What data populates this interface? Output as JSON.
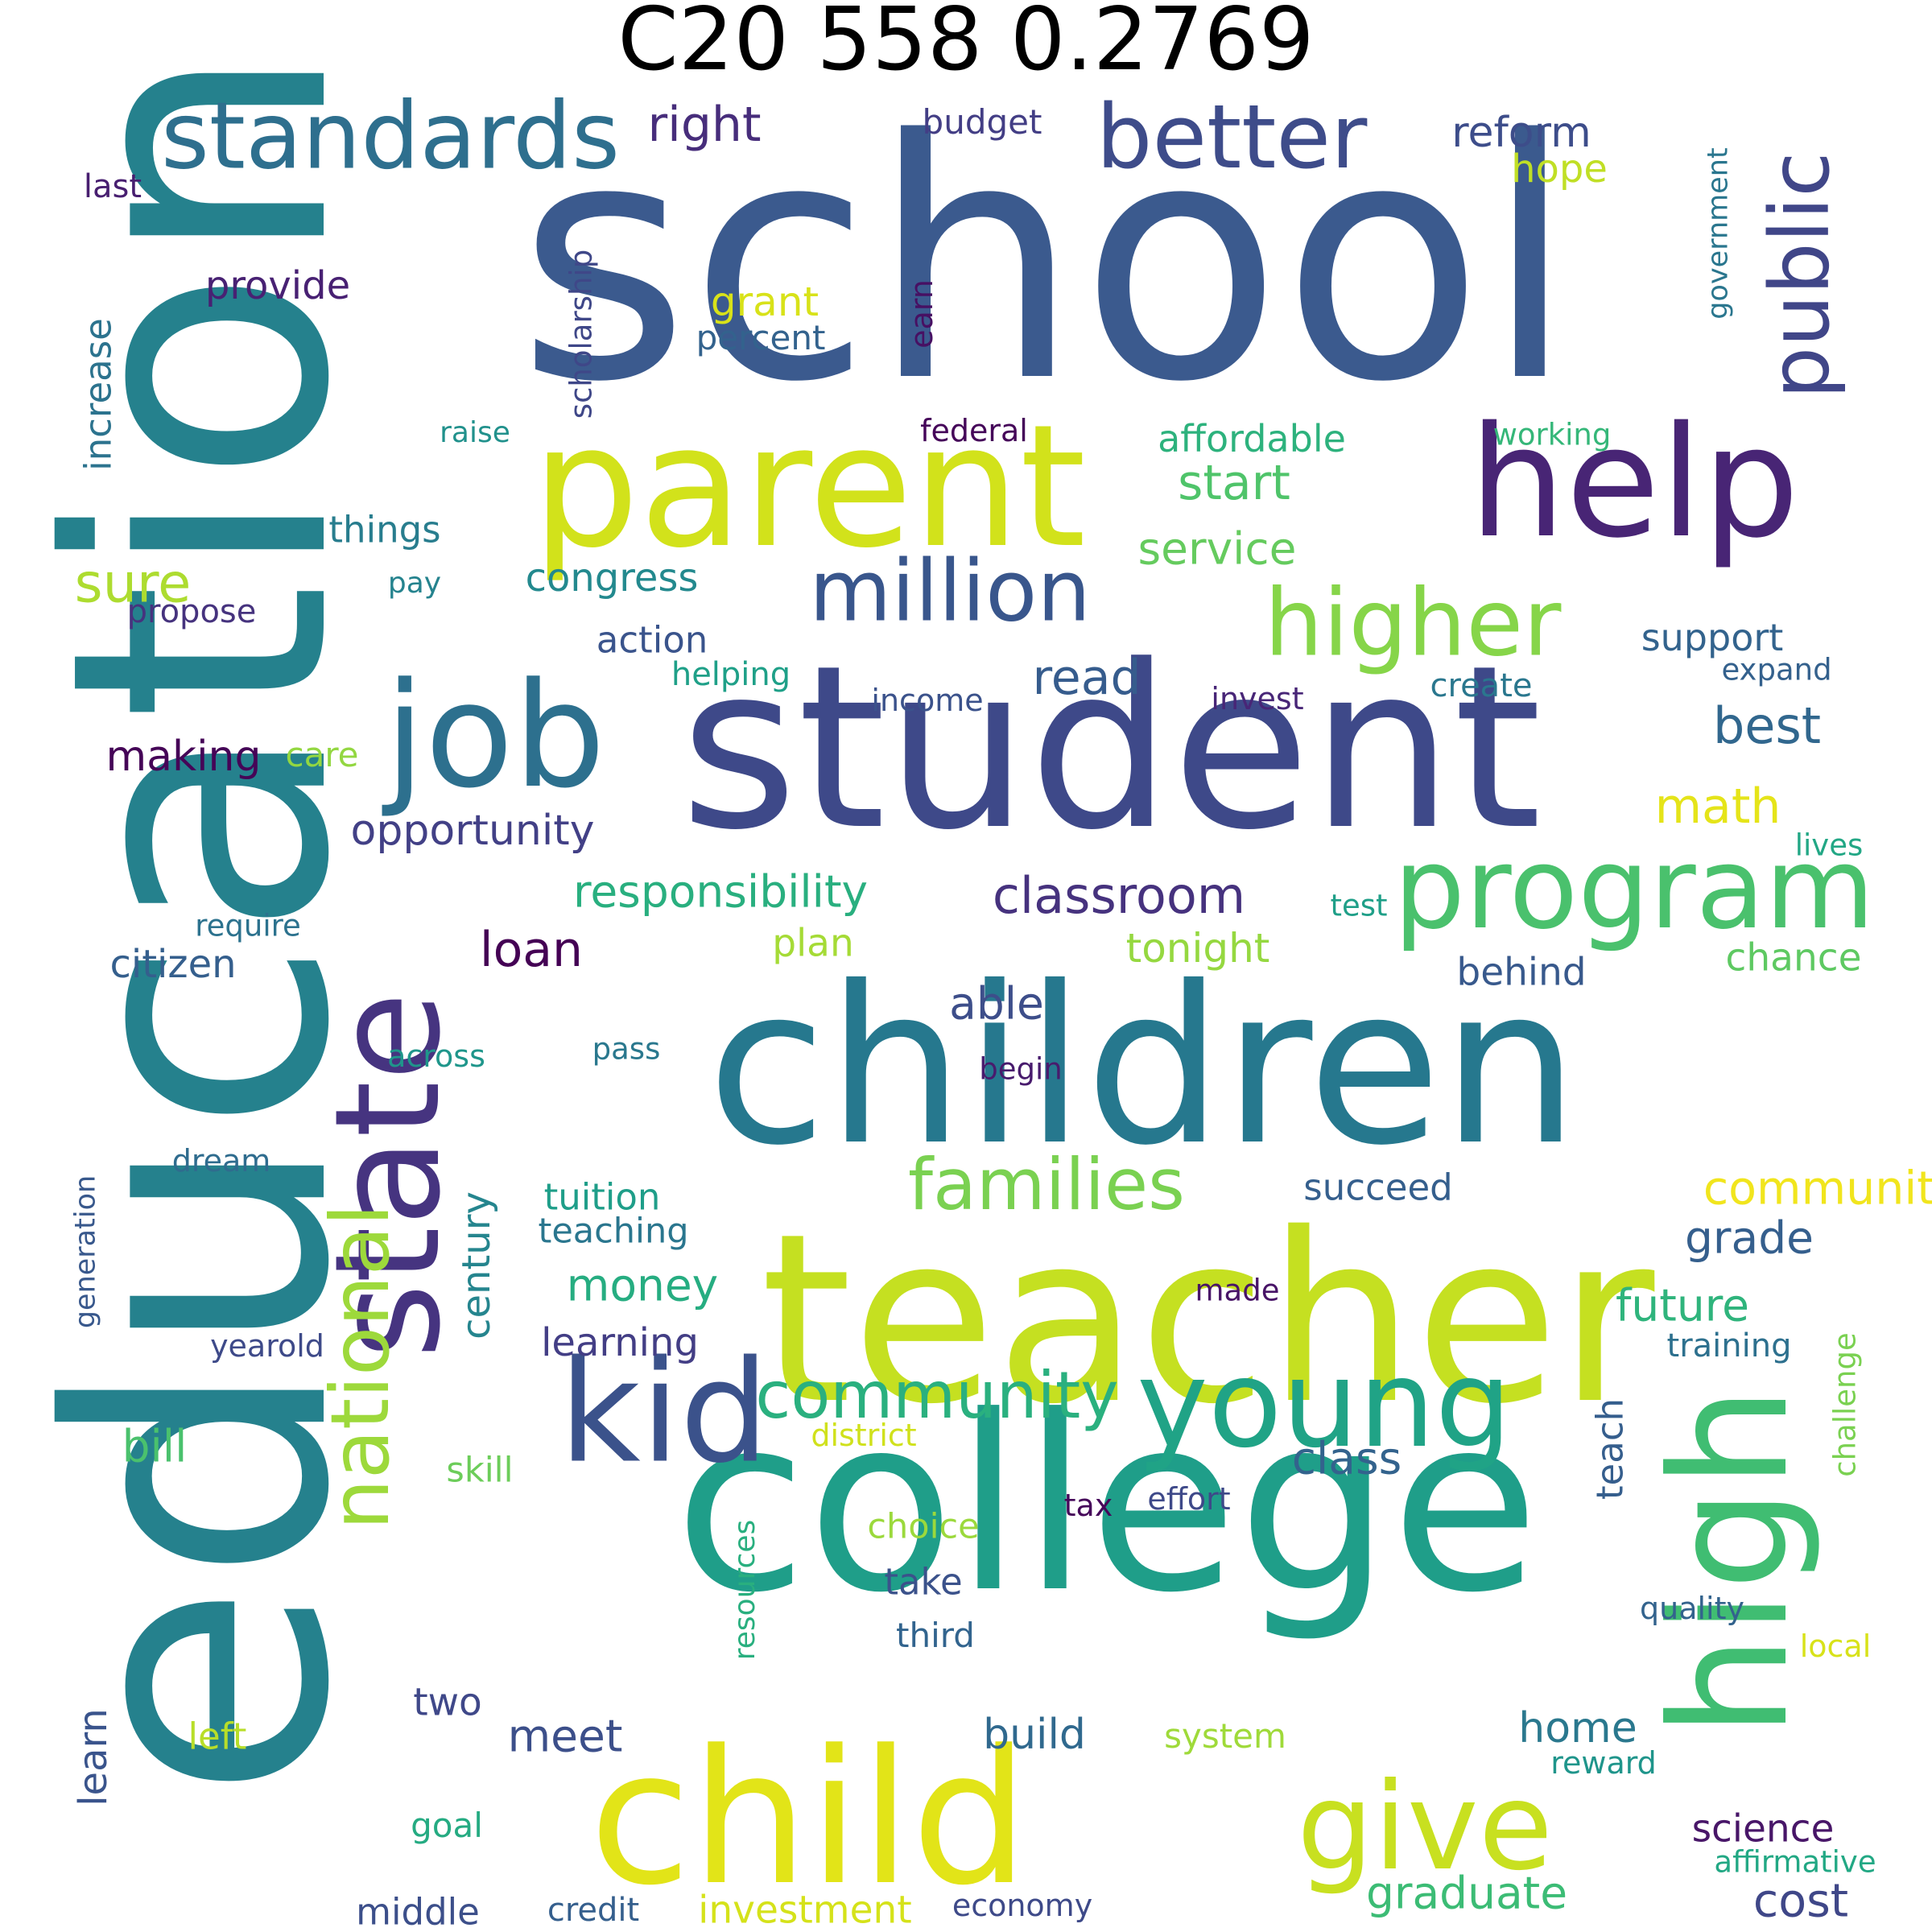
{
  "title": "C20 558 0.2769",
  "colors": {
    "background": "#ffffff",
    "title": "#000000",
    "palette": [
      "#440154",
      "#482878",
      "#3e4989",
      "#31688e",
      "#26828e",
      "#1f9e89",
      "#35b779",
      "#6ece58",
      "#b5de2b",
      "#fde725"
    ]
  },
  "words": [
    {
      "text": "school",
      "color": "#3b5a8e",
      "vertical": false
    },
    {
      "text": "education",
      "color": "#25818d",
      "vertical": true
    },
    {
      "text": "student",
      "color": "#3e4989",
      "vertical": false
    },
    {
      "text": "children",
      "color": "#26788e",
      "vertical": false
    },
    {
      "text": "college",
      "color": "#1f9e89",
      "vertical": false
    },
    {
      "text": "teacher",
      "color": "#c5e021",
      "vertical": false
    },
    {
      "text": "parent",
      "color": "#d2e21b",
      "vertical": false
    },
    {
      "text": "help",
      "color": "#482575",
      "vertical": false
    },
    {
      "text": "child",
      "color": "#e2e418",
      "vertical": false
    },
    {
      "text": "high",
      "color": "#40bd72",
      "vertical": true
    },
    {
      "text": "job",
      "color": "#2d708e",
      "vertical": false
    },
    {
      "text": "state",
      "color": "#463480",
      "vertical": true
    },
    {
      "text": "kid",
      "color": "#3b528b",
      "vertical": false
    },
    {
      "text": "young",
      "color": "#20a386",
      "vertical": false
    },
    {
      "text": "give",
      "color": "#c8e020",
      "vertical": false
    },
    {
      "text": "program",
      "color": "#4ac16d",
      "vertical": false
    },
    {
      "text": "standards",
      "color": "#2e6f8e",
      "vertical": false
    },
    {
      "text": "better",
      "color": "#3e4c8a",
      "vertical": false
    },
    {
      "text": "million",
      "color": "#39568c",
      "vertical": false
    },
    {
      "text": "higher",
      "color": "#86d549",
      "vertical": false
    },
    {
      "text": "public",
      "color": "#404688",
      "vertical": true
    },
    {
      "text": "national",
      "color": "#9dd93b",
      "vertical": true
    },
    {
      "text": "families",
      "color": "#7ad151",
      "vertical": false
    },
    {
      "text": "community",
      "color": "#2ab07f",
      "vertical": false
    },
    {
      "text": "right",
      "color": "#472d7b",
      "vertical": false
    },
    {
      "text": "reform",
      "color": "#3d4d8a",
      "vertical": false
    },
    {
      "text": "hope",
      "color": "#c0df25",
      "vertical": false
    },
    {
      "text": "government",
      "color": "#2a768e",
      "vertical": true
    },
    {
      "text": "budget",
      "color": "#433e85",
      "vertical": false
    },
    {
      "text": "last",
      "color": "#481f70",
      "vertical": false
    },
    {
      "text": "provide",
      "color": "#482173",
      "vertical": false
    },
    {
      "text": "scholarship",
      "color": "#3f4788",
      "vertical": true
    },
    {
      "text": "grant",
      "color": "#d8e219",
      "vertical": false
    },
    {
      "text": "earn",
      "color": "#471063",
      "vertical": true
    },
    {
      "text": "percent",
      "color": "#33628d",
      "vertical": false
    },
    {
      "text": "increase",
      "color": "#2c738e",
      "vertical": true
    },
    {
      "text": "raise",
      "color": "#21918c",
      "vertical": false
    },
    {
      "text": "federal",
      "color": "#450559",
      "vertical": false
    },
    {
      "text": "affordable",
      "color": "#2db27d",
      "vertical": false
    },
    {
      "text": "working",
      "color": "#35b779",
      "vertical": false
    },
    {
      "text": "start",
      "color": "#4fc46a",
      "vertical": false
    },
    {
      "text": "things",
      "color": "#287d8e",
      "vertical": false
    },
    {
      "text": "service",
      "color": "#65cb5e",
      "vertical": false
    },
    {
      "text": "sure",
      "color": "#addc30",
      "vertical": false
    },
    {
      "text": "pay",
      "color": "#25838e",
      "vertical": false
    },
    {
      "text": "congress",
      "color": "#23898e",
      "vertical": false
    },
    {
      "text": "propose",
      "color": "#46337e",
      "vertical": false
    },
    {
      "text": "action",
      "color": "#3a548c",
      "vertical": false
    },
    {
      "text": "helping",
      "color": "#1fa088",
      "vertical": false
    },
    {
      "text": "read",
      "color": "#365c8d",
      "vertical": false
    },
    {
      "text": "support",
      "color": "#33638d",
      "vertical": false
    },
    {
      "text": "expand",
      "color": "#34618d",
      "vertical": false
    },
    {
      "text": "income",
      "color": "#3b528b",
      "vertical": false
    },
    {
      "text": "invest",
      "color": "#482677",
      "vertical": false
    },
    {
      "text": "create",
      "color": "#2a778e",
      "vertical": false
    },
    {
      "text": "best",
      "color": "#31678e",
      "vertical": false
    },
    {
      "text": "making",
      "color": "#450457",
      "vertical": false
    },
    {
      "text": "care",
      "color": "#93d741",
      "vertical": false
    },
    {
      "text": "opportunity",
      "color": "#424086",
      "vertical": false
    },
    {
      "text": "math",
      "color": "#e5e419",
      "vertical": false
    },
    {
      "text": "lives",
      "color": "#22a785",
      "vertical": false
    },
    {
      "text": "responsibility",
      "color": "#29af7f",
      "vertical": false
    },
    {
      "text": "classroom",
      "color": "#46327e",
      "vertical": false
    },
    {
      "text": "test",
      "color": "#1f9f88",
      "vertical": false
    },
    {
      "text": "require",
      "color": "#2c728e",
      "vertical": false
    },
    {
      "text": "loan",
      "color": "#440154",
      "vertical": false
    },
    {
      "text": "plan",
      "color": "#a5db36",
      "vertical": false
    },
    {
      "text": "tonight",
      "color": "#95d840",
      "vertical": false
    },
    {
      "text": "chance",
      "color": "#5ec962",
      "vertical": false
    },
    {
      "text": "citizen",
      "color": "#355f8d",
      "vertical": false
    },
    {
      "text": "behind",
      "color": "#38598c",
      "vertical": false
    },
    {
      "text": "able",
      "color": "#3d4e8a",
      "vertical": false
    },
    {
      "text": "across",
      "color": "#1f968b",
      "vertical": false
    },
    {
      "text": "pass",
      "color": "#2a788e",
      "vertical": false
    },
    {
      "text": "begin",
      "color": "#481b6d",
      "vertical": false
    },
    {
      "text": "dream",
      "color": "#2f6c8e",
      "vertical": false
    },
    {
      "text": "generation",
      "color": "#38588c",
      "vertical": true
    },
    {
      "text": "tuition",
      "color": "#1f9e89",
      "vertical": false
    },
    {
      "text": "teaching",
      "color": "#2a768e",
      "vertical": false
    },
    {
      "text": "century",
      "color": "#25858e",
      "vertical": true
    },
    {
      "text": "succeed",
      "color": "#355f8d",
      "vertical": false
    },
    {
      "text": "communities",
      "color": "#f1e51d",
      "vertical": false
    },
    {
      "text": "grade",
      "color": "#355f8d",
      "vertical": false
    },
    {
      "text": "money",
      "color": "#26ad81",
      "vertical": false
    },
    {
      "text": "future",
      "color": "#2fb47c",
      "vertical": false
    },
    {
      "text": "made",
      "color": "#481467",
      "vertical": false
    },
    {
      "text": "learning",
      "color": "#433e85",
      "vertical": false
    },
    {
      "text": "yearold",
      "color": "#3e4a89",
      "vertical": false
    },
    {
      "text": "training",
      "color": "#2d708e",
      "vertical": false
    },
    {
      "text": "challenge",
      "color": "#7ad151",
      "vertical": true
    },
    {
      "text": "bill",
      "color": "#4ac16d",
      "vertical": false
    },
    {
      "text": "district",
      "color": "#d0e11c",
      "vertical": false
    },
    {
      "text": "teach",
      "color": "#355e8d",
      "vertical": true
    },
    {
      "text": "skill",
      "color": "#6ccd5a",
      "vertical": false
    },
    {
      "text": "class",
      "color": "#33638d",
      "vertical": false
    },
    {
      "text": "tax",
      "color": "#46075a",
      "vertical": false
    },
    {
      "text": "effort",
      "color": "#3e4989",
      "vertical": false
    },
    {
      "text": "choice",
      "color": "#9bd93c",
      "vertical": false
    },
    {
      "text": "resources",
      "color": "#29af7f",
      "vertical": true
    },
    {
      "text": "take",
      "color": "#3b528b",
      "vertical": false
    },
    {
      "text": "quality",
      "color": "#33638d",
      "vertical": false
    },
    {
      "text": "third",
      "color": "#32648e",
      "vertical": false
    },
    {
      "text": "local",
      "color": "#d8e219",
      "vertical": false
    },
    {
      "text": "two",
      "color": "#3f4889",
      "vertical": false
    },
    {
      "text": "learn",
      "color": "#3a548c",
      "vertical": true
    },
    {
      "text": "left",
      "color": "#b8de29",
      "vertical": false
    },
    {
      "text": "meet",
      "color": "#3c4f8a",
      "vertical": false
    },
    {
      "text": "build",
      "color": "#30698e",
      "vertical": false
    },
    {
      "text": "system",
      "color": "#9fda3a",
      "vertical": false
    },
    {
      "text": "home",
      "color": "#2a788e",
      "vertical": false
    },
    {
      "text": "reward",
      "color": "#1f958b",
      "vertical": false
    },
    {
      "text": "science",
      "color": "#481668",
      "vertical": false
    },
    {
      "text": "goal",
      "color": "#25ab82",
      "vertical": false
    },
    {
      "text": "affirmative",
      "color": "#22a884",
      "vertical": false
    },
    {
      "text": "graduate",
      "color": "#3cbc75",
      "vertical": false
    },
    {
      "text": "cost",
      "color": "#3f4788",
      "vertical": false
    },
    {
      "text": "middle",
      "color": "#3c4f8a",
      "vertical": false
    },
    {
      "text": "credit",
      "color": "#355f8d",
      "vertical": false
    },
    {
      "text": "investment",
      "color": "#d5e21a",
      "vertical": false
    },
    {
      "text": "economy",
      "color": "#3e4a89",
      "vertical": false
    }
  ]
}
